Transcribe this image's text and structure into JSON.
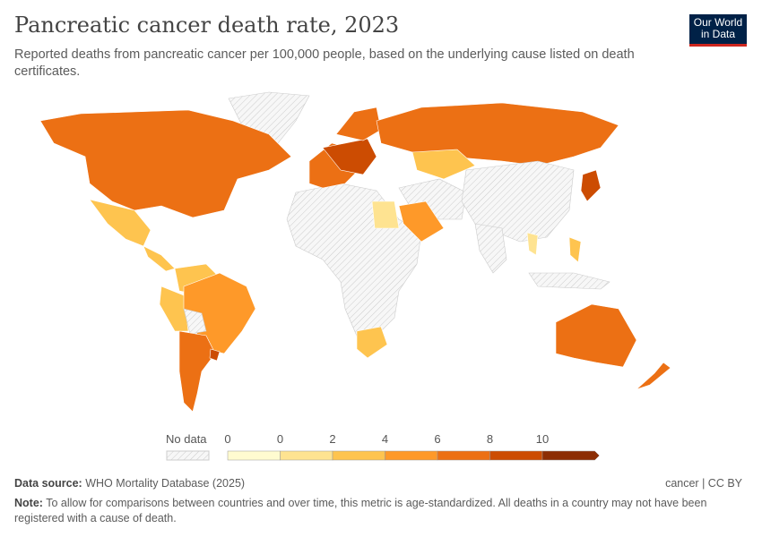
{
  "header": {
    "title": "Pancreatic cancer death rate, 2023",
    "subtitle": "Reported deaths from pancreatic cancer per 100,000 people, based on the underlying cause listed on death certificates."
  },
  "logo": {
    "text": "Our World in Data",
    "line1": "Our World",
    "line2": "in Data"
  },
  "legend": {
    "no_data": "No data",
    "ticks": [
      "0",
      "0",
      "2",
      "4",
      "6",
      "8",
      "10"
    ],
    "colors": [
      "#fffbd0",
      "#fee391",
      "#fec44f",
      "#fe9929",
      "#ec7014",
      "#cc4c02",
      "#8c2d04"
    ],
    "no_data_pattern": "hatched-grey"
  },
  "footer": {
    "source_label": "Data source:",
    "source": "WHO Mortality Database (2025)",
    "license": "cancer | CC BY",
    "note_label": "Note:",
    "note": "To allow for comparisons between countries and over time, this metric is age-standardized. All deaths in a country may not have been registered with a cause of death."
  }
}
